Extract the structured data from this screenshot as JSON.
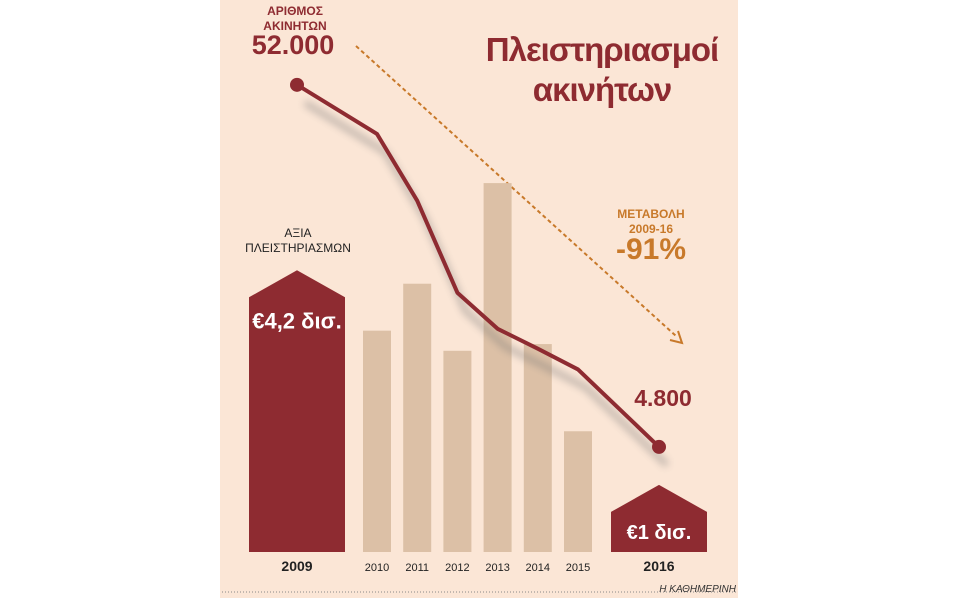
{
  "chart_data": {
    "type": "bar_line",
    "title": "Πλειστηριασμοί ακινήτων",
    "categories": [
      "2009",
      "2010",
      "2011",
      "2012",
      "2013",
      "2014",
      "2015",
      "2016"
    ],
    "series": [
      {
        "name": "ΑΞΙΑ ΠΛΕΙΣΤΗΡΙΑΣΜΩΝ",
        "type": "bar",
        "colors": [
          "#8e2b31",
          "#dcc0a6",
          "#dcc0a6",
          "#dcc0a6",
          "#dcc0a6",
          "#dcc0a6",
          "#dcc0a6",
          "#8e2b31"
        ],
        "values": [
          4.2,
          3.3,
          4.0,
          3.0,
          5.5,
          3.1,
          1.8,
          1.0
        ],
        "value_labels": [
          "€4,2 δισ.",
          null,
          null,
          null,
          null,
          null,
          null,
          "€1 δισ."
        ]
      },
      {
        "name": "ΑΡΙΘΜΟΣ ΑΚΙΝΗΤΩΝ",
        "type": "line",
        "axis": "y2",
        "color": "#8e2b31",
        "values": [
          52000,
          45600,
          36900,
          24900,
          20200,
          17600,
          14900,
          4800
        ],
        "value_labels": [
          "52.000",
          null,
          null,
          null,
          null,
          null,
          null,
          "4.800"
        ]
      }
    ],
    "ylim": [
      0,
      8.2
    ],
    "y2lim": [
      -8900,
      62800
    ],
    "annotation": {
      "label": "ΜΕΤΑΒΟΛΗ 2009-16",
      "value": -91,
      "value_label": "-91%",
      "color": "#c8792a"
    },
    "source": "Η ΚΑΘΗΜΕΡΙΝΗ"
  }
}
